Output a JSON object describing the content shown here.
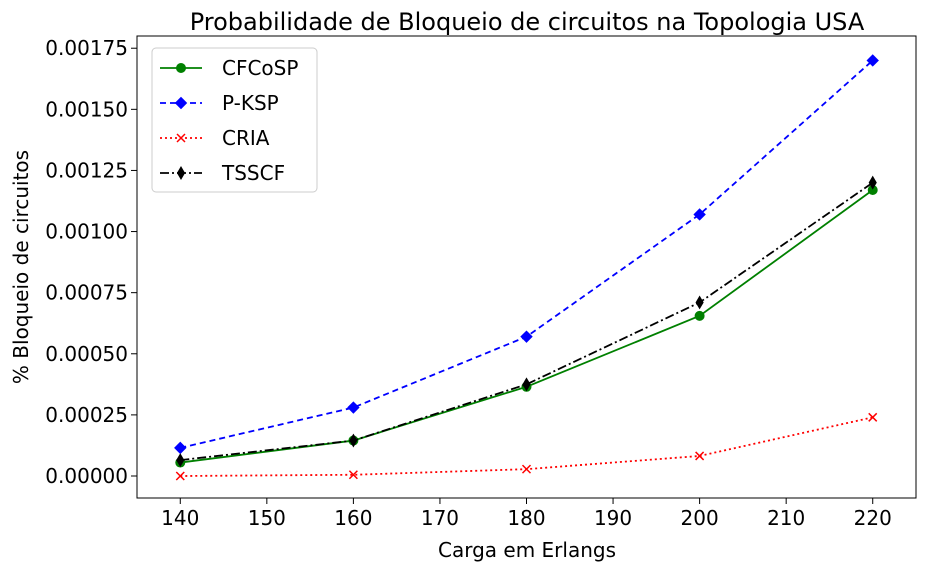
{
  "chart_data": {
    "type": "line",
    "title": "Probabilidade de Bloqueio de circuitos na Topologia USA",
    "xlabel": "Carga em Erlangs",
    "ylabel": "% Bloqueio de circuitos",
    "x": [
      140,
      160,
      180,
      200,
      220
    ],
    "xlim": [
      135,
      225
    ],
    "ylim": [
      -9e-05,
      0.0018
    ],
    "xticks": [
      "140",
      "150",
      "160",
      "170",
      "180",
      "190",
      "200",
      "210",
      "220"
    ],
    "yticks": [
      "0.00000",
      "0.00025",
      "0.00050",
      "0.00075",
      "0.00100",
      "0.00125",
      "0.00150",
      "0.00175"
    ],
    "grid": false,
    "legend_position": "top-left",
    "series": [
      {
        "name": "CFCoSP",
        "values": [
          5.5e-05,
          0.000145,
          0.000365,
          0.000655,
          0.00117
        ],
        "color": "#008000",
        "dash": "solid",
        "marker": "circle"
      },
      {
        "name": "P-KSP",
        "values": [
          0.000115,
          0.00028,
          0.00057,
          0.00107,
          0.0017
        ],
        "color": "#0000ff",
        "dash": "dashed",
        "marker": "diamond"
      },
      {
        "name": "CRIA",
        "values": [
          0.0,
          5e-06,
          2.8e-05,
          8.2e-05,
          0.00024
        ],
        "color": "#ff0000",
        "dash": "dotted",
        "marker": "x"
      },
      {
        "name": "TSSCF",
        "values": [
          6.5e-05,
          0.000145,
          0.000375,
          0.00071,
          0.0012
        ],
        "color": "#000000",
        "dash": "dashdot",
        "marker": "thin-diamond"
      }
    ]
  }
}
